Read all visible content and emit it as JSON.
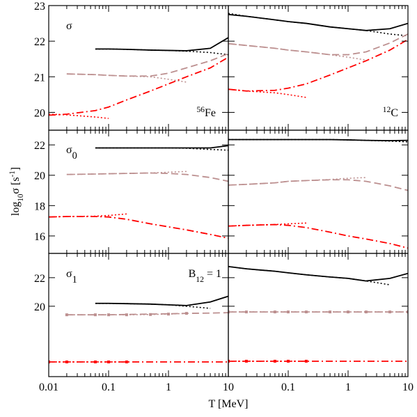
{
  "chart_data": [
    {
      "type": "line",
      "xscale": "log",
      "xlim": [
        0.01,
        10
      ],
      "ylim": [
        19.5,
        23
      ],
      "xticks": [
        0.01,
        0.1,
        1,
        10
      ],
      "yticks": [
        20,
        21,
        22,
        23
      ],
      "show_xtick_labels": false,
      "show_ytick_labels": true,
      "annotations": [
        [
          {
            "text": "σ"
          }
        ],
        [
          {
            "text": "56",
            "baseline": "super"
          },
          {
            "text": "Fe"
          }
        ]
      ],
      "x": [
        0.01,
        0.02,
        0.06,
        0.1,
        0.2,
        0.5,
        1,
        2,
        5,
        10
      ],
      "series": [
        {
          "color": "#000000",
          "dash": "solid",
          "values": [
            null,
            null,
            21.78,
            21.78,
            21.77,
            21.75,
            21.74,
            21.73,
            21.8,
            22.1
          ]
        },
        {
          "color": "#000000",
          "dash": "dotted",
          "values": [
            null,
            null,
            21.78,
            21.78,
            21.77,
            21.75,
            21.74,
            21.72,
            21.68,
            21.62
          ]
        },
        {
          "color": "#bc8f8f",
          "dash": "dashed",
          "values": [
            null,
            21.08,
            21.06,
            21.04,
            21.02,
            21.02,
            21.1,
            21.25,
            21.45,
            21.65
          ]
        },
        {
          "color": "#bc8f8f",
          "dash": "dotted",
          "values": [
            null,
            21.08,
            21.06,
            21.04,
            21.02,
            21.0,
            20.93,
            20.85,
            null,
            null
          ]
        },
        {
          "color": "#ff0000",
          "dash": "dashdot",
          "values": [
            19.92,
            19.95,
            20.05,
            20.15,
            20.35,
            20.6,
            20.8,
            21.0,
            21.25,
            21.55
          ]
        },
        {
          "color": "#ff0000",
          "dash": "dotted",
          "values": [
            19.95,
            19.93,
            19.87,
            19.83,
            null,
            null,
            null,
            null,
            null,
            null
          ]
        }
      ]
    },
    {
      "type": "line",
      "xscale": "log",
      "xlim": [
        0.01,
        10
      ],
      "ylim": [
        19.5,
        23
      ],
      "xticks": [
        0.01,
        0.1,
        1,
        10
      ],
      "yticks": [
        20,
        21,
        22,
        23
      ],
      "show_xtick_labels": false,
      "show_ytick_labels": false,
      "annotations": [
        [
          {
            "text": "12",
            "baseline": "super"
          },
          {
            "text": "C"
          }
        ]
      ],
      "x": [
        0.01,
        0.02,
        0.06,
        0.1,
        0.2,
        0.5,
        1,
        2,
        5,
        10
      ],
      "series": [
        {
          "color": "#000000",
          "dash": "solid",
          "values": [
            22.75,
            22.7,
            22.6,
            22.55,
            22.5,
            22.4,
            22.35,
            22.3,
            22.35,
            22.5
          ]
        },
        {
          "color": "#000000",
          "dash": "dotted",
          "values": [
            22.78,
            22.7,
            22.6,
            22.55,
            22.5,
            22.4,
            22.35,
            22.3,
            22.2,
            22.15
          ]
        },
        {
          "color": "#bc8f8f",
          "dash": "dashed",
          "values": [
            21.93,
            21.88,
            21.8,
            21.75,
            21.7,
            21.62,
            21.62,
            21.7,
            21.95,
            22.2
          ]
        },
        {
          "color": "#bc8f8f",
          "dash": "dotted",
          "values": [
            21.93,
            21.88,
            21.8,
            21.75,
            21.7,
            21.62,
            21.55,
            21.47,
            null,
            null
          ]
        },
        {
          "color": "#ff0000",
          "dash": "dashdot",
          "values": [
            20.65,
            20.6,
            20.62,
            20.68,
            20.8,
            21.05,
            21.25,
            21.45,
            21.75,
            22.05
          ]
        },
        {
          "color": "#ff0000",
          "dash": "dotted",
          "values": [
            20.65,
            20.6,
            20.55,
            20.5,
            20.42,
            null,
            null,
            null,
            null,
            null
          ]
        }
      ]
    },
    {
      "type": "line",
      "xscale": "log",
      "xlim": [
        0.01,
        10
      ],
      "ylim": [
        14.85,
        22.97
      ],
      "xticks": [
        0.01,
        0.1,
        1,
        10
      ],
      "yticks": [
        16,
        18,
        20,
        22
      ],
      "show_xtick_labels": false,
      "show_ytick_labels": true,
      "annotations": [
        [
          {
            "text": "σ"
          },
          {
            "text": "0",
            "baseline": "sub"
          }
        ]
      ],
      "ylabel": [
        {
          "text": "log"
        },
        {
          "text": "10",
          "baseline": "sub"
        },
        {
          "text": "σ [s"
        },
        {
          "text": "-1",
          "baseline": "super"
        },
        {
          "text": "]"
        }
      ],
      "x": [
        0.01,
        0.02,
        0.06,
        0.1,
        0.2,
        0.5,
        1,
        2,
        5,
        10
      ],
      "series": [
        {
          "color": "#000000",
          "dash": "solid",
          "values": [
            null,
            null,
            21.8,
            21.8,
            21.8,
            21.8,
            21.8,
            21.8,
            21.8,
            21.95
          ]
        },
        {
          "color": "#000000",
          "dash": "dotted",
          "values": [
            null,
            null,
            21.8,
            21.8,
            21.8,
            21.8,
            21.8,
            21.78,
            21.7,
            21.65
          ]
        },
        {
          "color": "#bc8f8f",
          "dash": "dashed",
          "values": [
            null,
            20.05,
            20.08,
            20.1,
            20.12,
            20.15,
            20.12,
            20.05,
            19.85,
            19.6
          ]
        },
        {
          "color": "#bc8f8f",
          "dash": "dotted",
          "values": [
            null,
            20.05,
            20.08,
            20.1,
            20.12,
            20.15,
            20.2,
            20.25,
            null,
            null
          ]
        },
        {
          "color": "#ff0000",
          "dash": "dashdot",
          "values": [
            17.25,
            17.28,
            17.28,
            17.25,
            17.1,
            16.8,
            16.6,
            16.4,
            16.1,
            15.85
          ]
        },
        {
          "color": "#ff0000",
          "dash": "dotted",
          "values": [
            17.25,
            17.28,
            17.3,
            17.35,
            17.45,
            null,
            null,
            null,
            null,
            null
          ]
        }
      ]
    },
    {
      "type": "line",
      "xscale": "log",
      "xlim": [
        0.01,
        10
      ],
      "ylim": [
        14.85,
        22.97
      ],
      "xticks": [
        0.01,
        0.1,
        1,
        10
      ],
      "yticks": [
        16,
        18,
        20,
        22
      ],
      "show_xtick_labels": false,
      "show_ytick_labels": false,
      "annotations": [],
      "x": [
        0.01,
        0.02,
        0.06,
        0.1,
        0.2,
        0.5,
        1,
        2,
        5,
        10
      ],
      "series": [
        {
          "color": "#000000",
          "dash": "solid",
          "values": [
            22.35,
            22.35,
            22.35,
            22.35,
            22.35,
            22.35,
            22.33,
            22.3,
            22.28,
            22.3
          ]
        },
        {
          "color": "#000000",
          "dash": "dotted",
          "values": [
            22.35,
            22.35,
            22.35,
            22.35,
            22.35,
            22.35,
            22.33,
            22.3,
            22.25,
            22.2
          ]
        },
        {
          "color": "#bc8f8f",
          "dash": "dashed",
          "values": [
            19.35,
            19.4,
            19.5,
            19.6,
            19.65,
            19.7,
            19.7,
            19.6,
            19.3,
            19.0
          ]
        },
        {
          "color": "#bc8f8f",
          "dash": "dotted",
          "values": [
            19.35,
            19.4,
            19.5,
            19.6,
            19.65,
            19.72,
            19.8,
            19.85,
            null,
            null
          ]
        },
        {
          "color": "#ff0000",
          "dash": "dashdot",
          "values": [
            16.65,
            16.7,
            16.75,
            16.7,
            16.55,
            16.25,
            16.0,
            15.8,
            15.5,
            15.2
          ]
        },
        {
          "color": "#ff0000",
          "dash": "dotted",
          "values": [
            16.65,
            16.7,
            16.75,
            16.8,
            16.85,
            null,
            null,
            null,
            null,
            null
          ]
        }
      ]
    },
    {
      "type": "line",
      "xscale": "log",
      "xlim": [
        0.01,
        10
      ],
      "ylim": [
        15.07,
        23.7
      ],
      "xticks": [
        0.01,
        0.1,
        1,
        10
      ],
      "yticks": [
        20,
        22
      ],
      "show_xtick_labels": true,
      "show_ytick_labels": true,
      "annotations": [
        [
          {
            "text": "σ"
          },
          {
            "text": "1",
            "baseline": "sub"
          }
        ],
        [
          {
            "text": "B"
          },
          {
            "text": "12",
            "baseline": "sub"
          },
          {
            "text": " = 1"
          }
        ]
      ],
      "xlabel": [
        {
          "text": "T [MeV]"
        }
      ],
      "x": [
        0.01,
        0.02,
        0.06,
        0.1,
        0.2,
        0.5,
        1,
        2,
        5,
        10
      ],
      "series": [
        {
          "color": "#000000",
          "dash": "solid",
          "values": [
            null,
            null,
            20.2,
            20.2,
            20.18,
            20.15,
            20.1,
            20.05,
            20.3,
            20.7
          ]
        },
        {
          "color": "#000000",
          "dash": "dotted",
          "values": [
            null,
            null,
            20.2,
            20.2,
            20.18,
            20.15,
            20.1,
            20.0,
            19.85,
            null
          ]
        },
        {
          "color": "#bc8f8f",
          "dash": "dashed",
          "values": [
            null,
            19.4,
            19.4,
            19.4,
            19.42,
            19.45,
            19.47,
            19.5,
            19.52,
            19.55
          ]
        },
        {
          "color": "#bc8f8f",
          "dash": "dotted",
          "marker": "square",
          "values": [
            null,
            19.4,
            19.4,
            19.4,
            19.4,
            19.42,
            19.45,
            19.5,
            null,
            null
          ]
        },
        {
          "color": "#ff0000",
          "dash": "dashdot",
          "values": [
            16.1,
            16.1,
            16.1,
            16.1,
            16.1,
            16.1,
            16.1,
            16.1,
            16.1,
            16.1
          ]
        },
        {
          "color": "#ff0000",
          "dash": "dotted",
          "marker": "square",
          "values": [
            16.1,
            16.1,
            16.1,
            16.1,
            16.1,
            null,
            null,
            null,
            null,
            null
          ]
        }
      ]
    },
    {
      "type": "line",
      "xscale": "log",
      "xlim": [
        0.01,
        10
      ],
      "ylim": [
        15.07,
        23.7
      ],
      "xticks": [
        0.1,
        1,
        10
      ],
      "yticks": [
        20,
        22
      ],
      "show_xtick_labels": true,
      "show_ytick_labels": false,
      "annotations": [],
      "x": [
        0.01,
        0.02,
        0.06,
        0.1,
        0.2,
        0.5,
        1,
        2,
        5,
        10
      ],
      "series": [
        {
          "color": "#000000",
          "dash": "solid",
          "values": [
            22.78,
            22.62,
            22.45,
            22.34,
            22.2,
            22.05,
            21.95,
            21.77,
            21.95,
            22.3
          ]
        },
        {
          "color": "#000000",
          "dash": "dotted",
          "values": [
            22.78,
            22.62,
            22.45,
            22.34,
            22.2,
            22.05,
            21.95,
            21.77,
            21.5,
            null
          ]
        },
        {
          "color": "#bc8f8f",
          "dash": "dashed",
          "values": [
            19.6,
            19.6,
            19.6,
            19.6,
            19.6,
            19.6,
            19.6,
            19.6,
            19.6,
            19.6
          ]
        },
        {
          "color": "#bc8f8f",
          "dash": "dotted",
          "marker": "square",
          "values": [
            19.6,
            19.6,
            19.6,
            19.6,
            19.6,
            19.6,
            19.6,
            19.6,
            19.6,
            19.6
          ]
        },
        {
          "color": "#ff0000",
          "dash": "dashdot",
          "values": [
            16.15,
            16.15,
            16.15,
            16.15,
            16.15,
            16.15,
            16.15,
            16.15,
            16.15,
            16.15
          ]
        },
        {
          "color": "#ff0000",
          "dash": "dotted",
          "marker": "square",
          "values": [
            16.15,
            16.15,
            16.15,
            16.15,
            16.15,
            null,
            null,
            null,
            null,
            null
          ]
        }
      ]
    }
  ]
}
